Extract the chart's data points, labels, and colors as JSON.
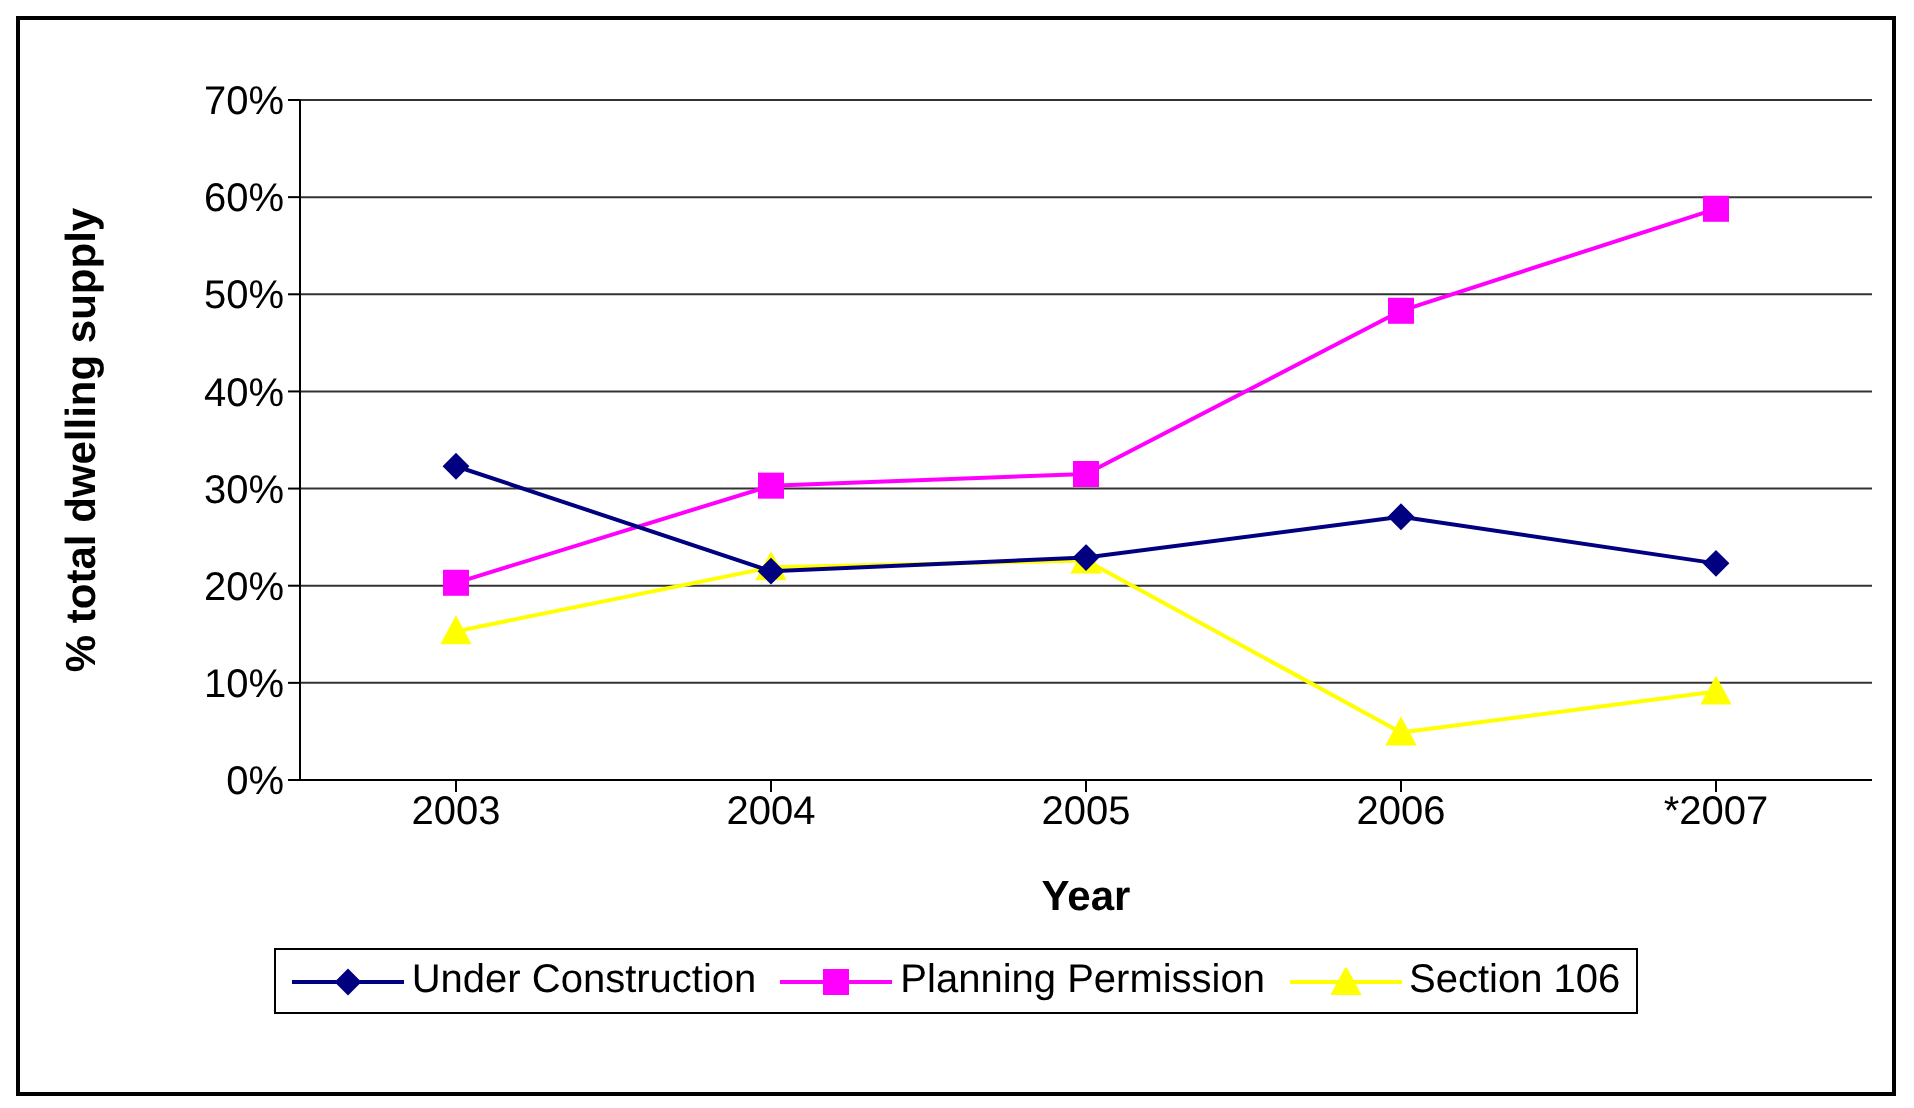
{
  "chart_data": {
    "type": "line",
    "xlabel": "Year",
    "ylabel": "% total dwelling supply",
    "categories": [
      "2003",
      "2004",
      "2005",
      "2006",
      "*2007"
    ],
    "series": [
      {
        "name": "Under Construction",
        "color": "#000080",
        "marker": "diamond",
        "values": [
          0.323,
          0.215,
          0.229,
          0.271,
          0.223
        ]
      },
      {
        "name": "Planning Permission",
        "color": "#ff00ff",
        "marker": "square",
        "values": [
          0.203,
          0.303,
          0.315,
          0.483,
          0.588
        ]
      },
      {
        "name": "Section 106",
        "color": "#ffff00",
        "marker": "triangle",
        "values": [
          0.153,
          0.219,
          0.226,
          0.049,
          0.091
        ]
      }
    ],
    "ylim": [
      0,
      0.7
    ],
    "yticks": [
      {
        "value": 0,
        "label": "0%"
      },
      {
        "value": 0.1,
        "label": "10%"
      },
      {
        "value": 0.2,
        "label": "20%"
      },
      {
        "value": 0.3,
        "label": "30%"
      },
      {
        "value": 0.4,
        "label": "40%"
      },
      {
        "value": 0.5,
        "label": "50%"
      },
      {
        "value": 0.6,
        "label": "60%"
      },
      {
        "value": 0.7,
        "label": "70%"
      }
    ],
    "grid": "y",
    "legend": "bottom",
    "line_style": "solid"
  }
}
